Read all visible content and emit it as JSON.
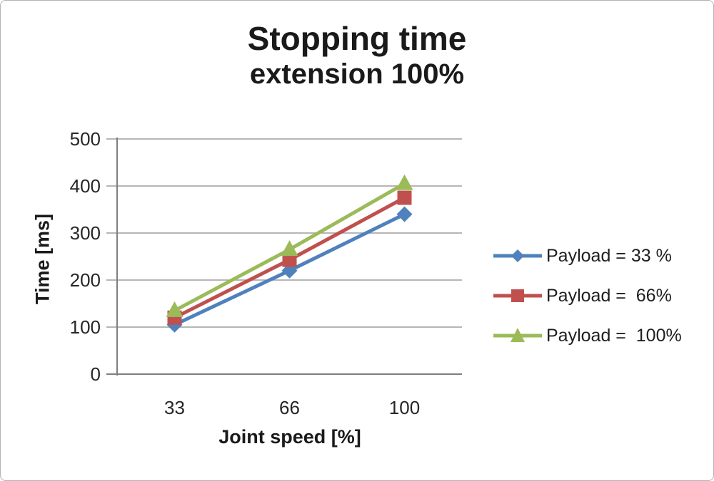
{
  "window": {
    "background": "#ffffff",
    "border_color": "#b3b3b3"
  },
  "chart_data": {
    "type": "line",
    "title": "Stopping time",
    "subtitle": "extension 100%",
    "xlabel": "Joint speed [%]",
    "ylabel": "Time [ms]",
    "categories": [
      "33",
      "66",
      "100"
    ],
    "y_ticks": [
      0,
      100,
      200,
      300,
      400,
      500
    ],
    "ylim": [
      0,
      500
    ],
    "grid": true,
    "legend_position": "right",
    "gridline_color": "#9d9d9d",
    "axis_line_color": "#7f7f7f",
    "series": [
      {
        "name": "Payload = 33 %",
        "values": [
          105,
          220,
          340
        ],
        "color": "#4f81bd",
        "marker": "diamond"
      },
      {
        "name": "Payload =  66%",
        "values": [
          120,
          243,
          375
        ],
        "color": "#c0504d",
        "marker": "square"
      },
      {
        "name": "Payload =  100%",
        "values": [
          135,
          265,
          405
        ],
        "color": "#9bbb59",
        "marker": "triangle"
      }
    ]
  }
}
